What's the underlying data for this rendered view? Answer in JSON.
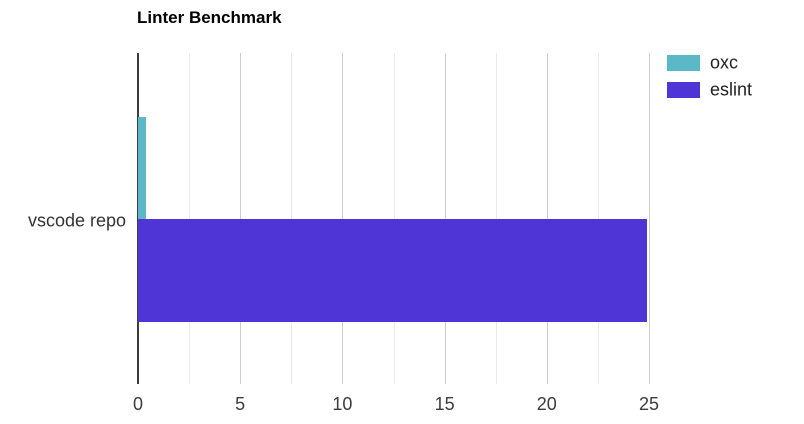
{
  "chart_data": {
    "type": "bar",
    "orientation": "horizontal",
    "title": "Linter Benchmark",
    "categories": [
      "vscode repo"
    ],
    "series": [
      {
        "name": "oxc",
        "color": "#5bb8c7",
        "values": [
          0.4
        ]
      },
      {
        "name": "eslint",
        "color": "#4f35d6",
        "values": [
          24.9
        ]
      }
    ],
    "xlabel": "",
    "ylabel": "",
    "xlim": [
      0,
      25
    ],
    "x_ticks": [
      0,
      5,
      10,
      15,
      20,
      25
    ],
    "minor_gridlines": [
      2.5,
      7.5,
      12.5,
      17.5,
      22.5
    ],
    "grid": true,
    "legend_position": "top-right"
  }
}
